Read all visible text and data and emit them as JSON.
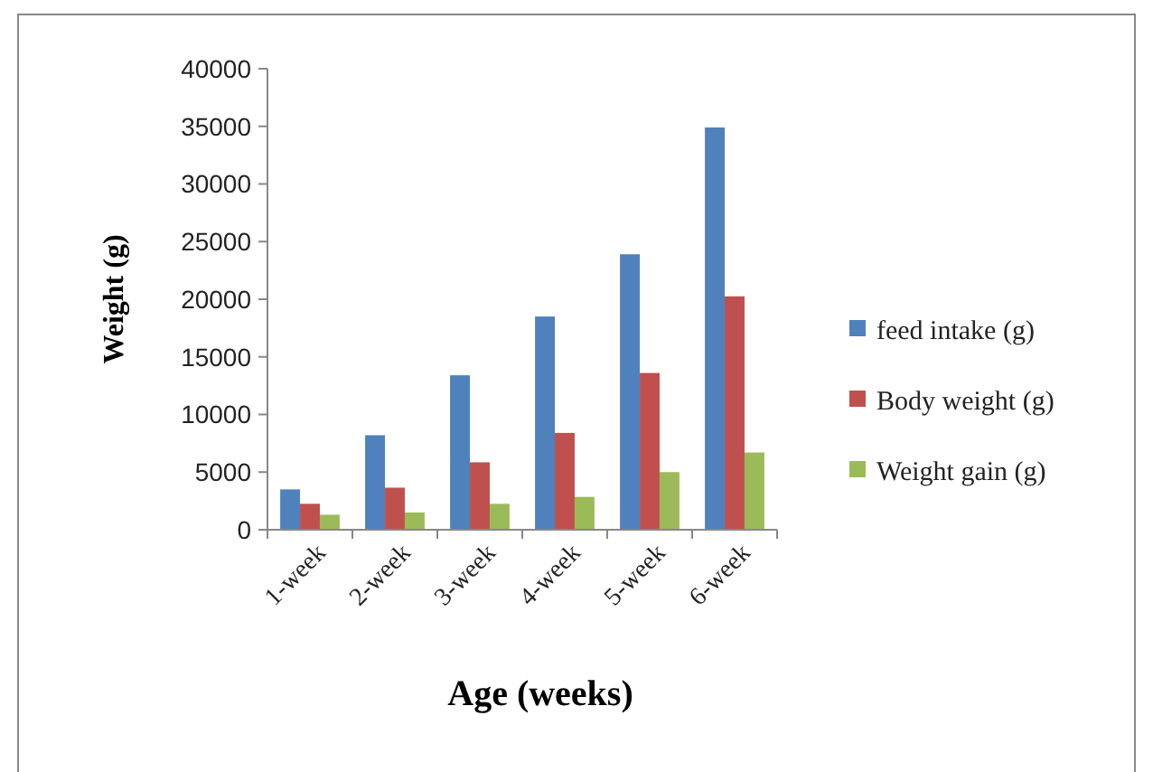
{
  "chart_data": {
    "type": "bar",
    "xlabel": "Age (weeks)",
    "ylabel": "Weight (g)",
    "categories": [
      "1-week",
      "2-week",
      "3-week",
      "4-week",
      "5-week",
      "6-week"
    ],
    "series": [
      {
        "name": "feed intake (g)",
        "color": "#4f81bd",
        "values": [
          3500,
          8200,
          13400,
          18500,
          23900,
          34900
        ]
      },
      {
        "name": "Body weight (g)",
        "color": "#c0504d",
        "values": [
          2250,
          3650,
          5850,
          8400,
          13600,
          20250
        ]
      },
      {
        "name": "Weight gain (g)",
        "color": "#9bbb59",
        "values": [
          1300,
          1500,
          2250,
          2850,
          5000,
          6700
        ]
      }
    ],
    "ylim": [
      0,
      40000
    ],
    "yticks": [
      0,
      5000,
      10000,
      15000,
      20000,
      25000,
      30000,
      35000,
      40000
    ],
    "legend": "right",
    "grid": false
  }
}
